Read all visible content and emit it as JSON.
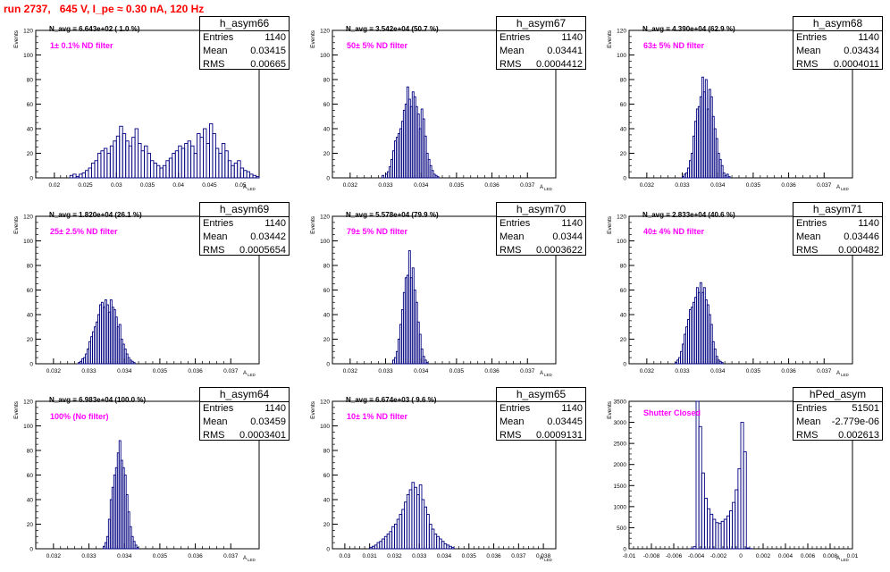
{
  "title": "run 2737,   645 V, I_pe ≈ 0.30 nA, 120 Hz",
  "axis": {
    "ylabel": "Events",
    "xlabel": "A",
    "xlabel_sub": "LED"
  },
  "chart_data": [
    {
      "type": "bar",
      "name": "h_asym66",
      "entries": "1140",
      "mean": "0.03415",
      "rms": "0.00665",
      "navg": "N_avg = 6.643e+02 ( 1.0 %)",
      "filter": "1± 0.1% ND filter",
      "xlim": [
        0.017,
        0.053
      ],
      "ylim": [
        0,
        120
      ],
      "xticks": [
        0.02,
        0.025,
        0.03,
        0.035,
        0.04,
        0.045,
        0.05
      ],
      "xtick_labels": [
        "0.02",
        "0.025",
        "0.03",
        "0.035",
        "0.04",
        "0.045",
        "0.05"
      ],
      "yticks": [
        0,
        20,
        40,
        60,
        80,
        100,
        120
      ],
      "bin_start": 0.0225,
      "bin_width": 0.0005,
      "values": [
        2,
        3,
        1,
        3,
        4,
        6,
        8,
        12,
        14,
        20,
        22,
        24,
        20,
        26,
        30,
        34,
        42,
        36,
        30,
        26,
        33,
        40,
        28,
        22,
        26,
        20,
        14,
        12,
        10,
        8,
        10,
        14,
        16,
        20,
        22,
        26,
        24,
        28,
        30,
        26,
        20,
        36,
        33,
        40,
        28,
        44,
        36,
        24,
        20,
        28,
        22,
        14,
        10,
        12,
        14,
        8,
        6,
        5,
        3,
        2,
        1
      ]
    },
    {
      "type": "bar",
      "name": "h_asym67",
      "entries": "1140",
      "mean": "0.03441",
      "rms": "0.0004412",
      "navg": "N_avg = 3.542e+04 (50.7 %)",
      "filter": "50± 5% ND filter",
      "xlim": [
        0.0315,
        0.0378
      ],
      "ylim": [
        0,
        120
      ],
      "xticks": [
        0.032,
        0.033,
        0.034,
        0.035,
        0.036,
        0.037
      ],
      "xtick_labels": [
        "0.032",
        "0.033",
        "0.034",
        "0.035",
        "0.036",
        "0.037"
      ],
      "yticks": [
        0,
        20,
        40,
        60,
        80,
        100,
        120
      ],
      "bin_start": 0.0329,
      "bin_width": 5e-05,
      "values": [
        2,
        0,
        3,
        5,
        9,
        15,
        22,
        30,
        33,
        36,
        40,
        46,
        55,
        60,
        74,
        64,
        58,
        70,
        66,
        58,
        52,
        40,
        56,
        48,
        34,
        20,
        15,
        10,
        6,
        3,
        2,
        1
      ]
    },
    {
      "type": "bar",
      "name": "h_asym68",
      "entries": "1140",
      "mean": "0.03434",
      "rms": "0.0004011",
      "navg": "N_avg = 4.390e+04 (62.9 %)",
      "filter": "63± 5% ND filter",
      "xlim": [
        0.0315,
        0.0378
      ],
      "ylim": [
        0,
        120
      ],
      "xticks": [
        0.032,
        0.033,
        0.034,
        0.035,
        0.036,
        0.037
      ],
      "xtick_labels": [
        "0.032",
        "0.033",
        "0.034",
        "0.035",
        "0.036",
        "0.037"
      ],
      "yticks": [
        0,
        20,
        40,
        60,
        80,
        100,
        120
      ],
      "bin_start": 0.033,
      "bin_width": 5e-05,
      "values": [
        1,
        3,
        4,
        8,
        14,
        20,
        34,
        46,
        56,
        58,
        66,
        82,
        70,
        80,
        56,
        72,
        66,
        50,
        40,
        32,
        20,
        15,
        10,
        4,
        2,
        3,
        1
      ]
    },
    {
      "type": "bar",
      "name": "h_asym69",
      "entries": "1140",
      "mean": "0.03442",
      "rms": "0.0005654",
      "navg": "N_avg = 1.820e+04 (26.1 %)",
      "filter": "25± 2.5% ND filter",
      "xlim": [
        0.0315,
        0.0378
      ],
      "ylim": [
        0,
        120
      ],
      "xticks": [
        0.032,
        0.033,
        0.034,
        0.035,
        0.036,
        0.037
      ],
      "xtick_labels": [
        "0.032",
        "0.033",
        "0.034",
        "0.035",
        "0.036",
        "0.037"
      ],
      "yticks": [
        0,
        20,
        40,
        60,
        80,
        100,
        120
      ],
      "bin_start": 0.0327,
      "bin_width": 5e-05,
      "values": [
        1,
        2,
        4,
        5,
        8,
        12,
        18,
        22,
        26,
        30,
        34,
        40,
        48,
        50,
        46,
        52,
        48,
        42,
        52,
        46,
        44,
        38,
        30,
        32,
        20,
        16,
        12,
        8,
        5,
        3,
        2,
        1
      ]
    },
    {
      "type": "bar",
      "name": "h_asym70",
      "entries": "1140",
      "mean": "0.0344",
      "rms": "0.0003622",
      "navg": "N_avg = 5.578e+04 (79.9 %)",
      "filter": "79± 5% ND filter",
      "xlim": [
        0.0315,
        0.0378
      ],
      "ylim": [
        0,
        120
      ],
      "xticks": [
        0.032,
        0.033,
        0.034,
        0.035,
        0.036,
        0.037
      ],
      "xtick_labels": [
        "0.032",
        "0.033",
        "0.034",
        "0.035",
        "0.036",
        "0.037"
      ],
      "yticks": [
        0,
        20,
        40,
        60,
        80,
        100,
        120
      ],
      "bin_start": 0.0332,
      "bin_width": 5e-05,
      "values": [
        3,
        5,
        10,
        20,
        32,
        44,
        58,
        70,
        72,
        92,
        70,
        78,
        60,
        50,
        34,
        24,
        12,
        6,
        3,
        1
      ]
    },
    {
      "type": "bar",
      "name": "h_asym71",
      "entries": "1140",
      "mean": "0.03446",
      "rms": "0.000482",
      "navg": "N_avg = 2.833e+04 (40.6 %)",
      "filter": "40± 4% ND filter",
      "xlim": [
        0.0315,
        0.0378
      ],
      "ylim": [
        0,
        120
      ],
      "xticks": [
        0.032,
        0.033,
        0.034,
        0.035,
        0.036,
        0.037
      ],
      "xtick_labels": [
        "0.032",
        "0.033",
        "0.034",
        "0.035",
        "0.036",
        "0.037"
      ],
      "yticks": [
        0,
        20,
        40,
        60,
        80,
        100,
        120
      ],
      "bin_start": 0.0328,
      "bin_width": 5e-05,
      "values": [
        1,
        3,
        5,
        10,
        16,
        24,
        30,
        36,
        44,
        46,
        50,
        54,
        62,
        58,
        66,
        58,
        62,
        52,
        48,
        40,
        32,
        18,
        12,
        6,
        3,
        2,
        1
      ]
    },
    {
      "type": "bar",
      "name": "h_asym64",
      "entries": "1140",
      "mean": "0.03459",
      "rms": "0.0003401",
      "navg": "N_avg = 6.983e+04 (100.0 %)",
      "filter": "100% (No filter)",
      "xlim": [
        0.0315,
        0.0378
      ],
      "ylim": [
        0,
        120
      ],
      "xticks": [
        0.032,
        0.033,
        0.034,
        0.035,
        0.036,
        0.037
      ],
      "xtick_labels": [
        "0.032",
        "0.033",
        "0.034",
        "0.035",
        "0.036",
        "0.037"
      ],
      "yticks": [
        0,
        20,
        40,
        60,
        80,
        100,
        120
      ],
      "bin_start": 0.0334,
      "bin_width": 5e-05,
      "values": [
        2,
        5,
        10,
        24,
        40,
        50,
        60,
        66,
        78,
        88,
        72,
        66,
        60,
        44,
        30,
        18,
        10,
        6,
        3,
        1
      ]
    },
    {
      "type": "bar",
      "name": "h_asym65",
      "entries": "1140",
      "mean": "0.03445",
      "rms": "0.0009131",
      "navg": "N_avg = 6.674e+03 ( 9.6 %)",
      "filter": "10± 1% ND filter",
      "xlim": [
        0.0295,
        0.0385
      ],
      "ylim": [
        0,
        120
      ],
      "xticks": [
        0.03,
        0.031,
        0.032,
        0.033,
        0.034,
        0.035,
        0.036,
        0.037,
        0.038
      ],
      "xtick_labels": [
        "0.03",
        "0.031",
        "0.032",
        "0.033",
        "0.034",
        "0.035",
        "0.036",
        "0.037",
        "0.038"
      ],
      "yticks": [
        0,
        20,
        40,
        60,
        80,
        100,
        120
      ],
      "bin_start": 0.031,
      "bin_width": 0.0001,
      "values": [
        1,
        2,
        3,
        5,
        6,
        8,
        10,
        12,
        14,
        18,
        20,
        24,
        28,
        32,
        38,
        44,
        48,
        54,
        50,
        44,
        52,
        40,
        34,
        28,
        20,
        16,
        12,
        10,
        8,
        6,
        4,
        3,
        2,
        1
      ]
    },
    {
      "type": "bar",
      "name": "hPed_asym",
      "entries": "51501",
      "mean": "-2.779e-06",
      "rms": "0.002613",
      "navg": "",
      "filter": "Shutter Closed",
      "xlim": [
        -0.01,
        0.01
      ],
      "ylim": [
        0,
        3500
      ],
      "xticks": [
        -0.01,
        -0.008,
        -0.006,
        -0.004,
        -0.002,
        0,
        0.002,
        0.004,
        0.006,
        0.008,
        0.01
      ],
      "xtick_labels": [
        "-0.01",
        "-0.008",
        "-0.006",
        "-0.004",
        "-0.002",
        "0",
        "0.002",
        "0.004",
        "0.006",
        "0.008",
        "0.01"
      ],
      "yticks": [
        0,
        500,
        1000,
        1500,
        2000,
        2500,
        3000,
        3500
      ],
      "bin_start": -0.0045,
      "bin_width": 0.00025,
      "values": [
        5,
        50,
        3500,
        2900,
        1800,
        1200,
        950,
        820,
        700,
        620,
        600,
        650,
        700,
        780,
        900,
        1100,
        1400,
        1900,
        3000,
        2300,
        20,
        5
      ]
    }
  ]
}
